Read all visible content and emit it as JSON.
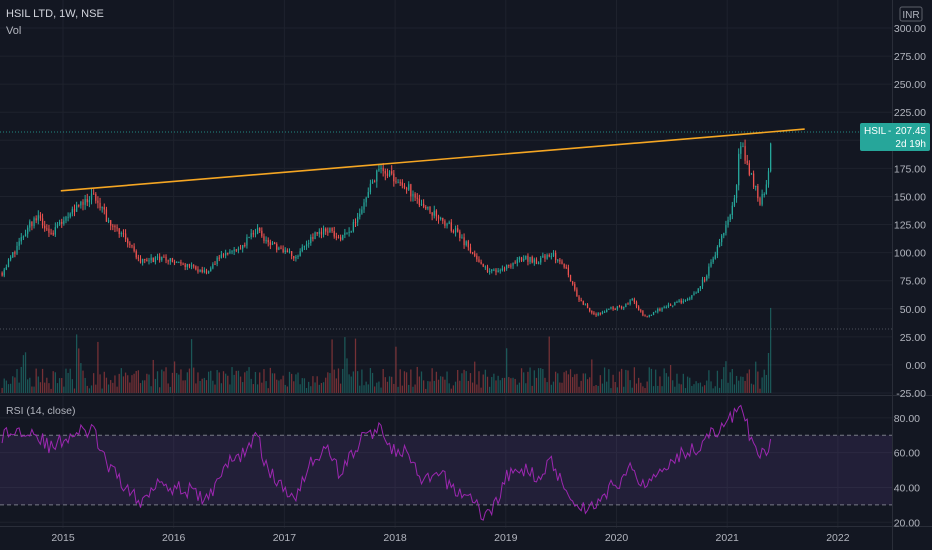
{
  "header": {
    "symbol_line": "HSIL LTD, 1W, NSE",
    "volume_label": "Vol",
    "currency": "INR"
  },
  "price_badge": {
    "symbol": "HSIL",
    "price": "207.45",
    "countdown": "2d 19h",
    "color": "#26a69a"
  },
  "rsi_label": "RSI (14, close)",
  "colors": {
    "background": "#131722",
    "up": "#26a69a",
    "down": "#ef5350",
    "trendline": "#f5a623",
    "rsi_line": "#9c27b0",
    "grid": "#1e222d",
    "text": "#b2b5be"
  },
  "chart_data": [
    {
      "type": "candlestick",
      "x_label": "",
      "y_label": "",
      "ylim": [
        -25,
        300
      ],
      "y_ticks": [
        "300.00",
        "275.00",
        "250.00",
        "225.00",
        "200.00",
        "175.00",
        "150.00",
        "125.00",
        "100.00",
        "75.00",
        "50.00",
        "25.00",
        "0.00",
        "-25.00"
      ],
      "x_ticks": [
        "2015",
        "2016",
        "2017",
        "2018",
        "2019",
        "2020",
        "2021",
        "2022"
      ],
      "x_tick_years": [
        2015,
        2016,
        2017,
        2018,
        2019,
        2020,
        2021,
        2022
      ],
      "price_keypoints": [
        [
          2014.45,
          82
        ],
        [
          2014.6,
          108
        ],
        [
          2014.75,
          132
        ],
        [
          2014.9,
          118
        ],
        [
          2015.0,
          130
        ],
        [
          2015.15,
          145
        ],
        [
          2015.28,
          150
        ],
        [
          2015.4,
          130
        ],
        [
          2015.55,
          115
        ],
        [
          2015.7,
          92
        ],
        [
          2015.85,
          95
        ],
        [
          2016.0,
          92
        ],
        [
          2016.15,
          88
        ],
        [
          2016.3,
          82
        ],
        [
          2016.45,
          100
        ],
        [
          2016.6,
          105
        ],
        [
          2016.75,
          120
        ],
        [
          2016.85,
          110
        ],
        [
          2017.0,
          100
        ],
        [
          2017.1,
          97
        ],
        [
          2017.25,
          115
        ],
        [
          2017.4,
          122
        ],
        [
          2017.5,
          112
        ],
        [
          2017.6,
          120
        ],
        [
          2017.7,
          140
        ],
        [
          2017.8,
          165
        ],
        [
          2017.88,
          177
        ],
        [
          2017.95,
          170
        ],
        [
          2018.1,
          160
        ],
        [
          2018.25,
          140
        ],
        [
          2018.4,
          132
        ],
        [
          2018.55,
          118
        ],
        [
          2018.7,
          100
        ],
        [
          2018.85,
          82
        ],
        [
          2019.0,
          88
        ],
        [
          2019.15,
          95
        ],
        [
          2019.3,
          92
        ],
        [
          2019.4,
          100
        ],
        [
          2019.55,
          85
        ],
        [
          2019.65,
          60
        ],
        [
          2019.8,
          45
        ],
        [
          2019.95,
          50
        ],
        [
          2020.05,
          52
        ],
        [
          2020.15,
          58
        ],
        [
          2020.25,
          42
        ],
        [
          2020.4,
          50
        ],
        [
          2020.55,
          55
        ],
        [
          2020.7,
          62
        ],
        [
          2020.8,
          78
        ],
        [
          2020.9,
          100
        ],
        [
          2021.0,
          128
        ],
        [
          2021.07,
          150
        ],
        [
          2021.12,
          198
        ],
        [
          2021.2,
          172
        ],
        [
          2021.3,
          145
        ],
        [
          2021.36,
          162
        ],
        [
          2021.41,
          207.45
        ]
      ],
      "trendline": {
        "start": [
          2014.98,
          155
        ],
        "end": [
          2021.7,
          210
        ]
      },
      "last_price": 207.45,
      "dotted_levels": [
        207.45,
        32
      ]
    },
    {
      "type": "line",
      "name": "RSI (14, close)",
      "ylim": [
        19,
        92
      ],
      "y_ticks": [
        "80.00",
        "60.00",
        "40.00",
        "20.00"
      ],
      "y_tick_values": [
        80,
        60,
        40,
        20
      ],
      "bands": [
        30,
        70
      ],
      "keypoints": [
        [
          2014.45,
          70
        ],
        [
          2014.7,
          74
        ],
        [
          2014.9,
          62
        ],
        [
          2015.0,
          68
        ],
        [
          2015.15,
          72
        ],
        [
          2015.28,
          72
        ],
        [
          2015.4,
          52
        ],
        [
          2015.55,
          42
        ],
        [
          2015.7,
          30
        ],
        [
          2015.85,
          45
        ],
        [
          2016.0,
          40
        ],
        [
          2016.15,
          38
        ],
        [
          2016.3,
          32
        ],
        [
          2016.45,
          52
        ],
        [
          2016.6,
          58
        ],
        [
          2016.75,
          70
        ],
        [
          2016.85,
          50
        ],
        [
          2017.0,
          38
        ],
        [
          2017.1,
          36
        ],
        [
          2017.25,
          56
        ],
        [
          2017.4,
          62
        ],
        [
          2017.5,
          48
        ],
        [
          2017.6,
          58
        ],
        [
          2017.7,
          68
        ],
        [
          2017.8,
          72
        ],
        [
          2017.88,
          74
        ],
        [
          2018.0,
          60
        ],
        [
          2018.1,
          60
        ],
        [
          2018.25,
          42
        ],
        [
          2018.4,
          48
        ],
        [
          2018.55,
          38
        ],
        [
          2018.7,
          34
        ],
        [
          2018.8,
          22
        ],
        [
          2018.9,
          30
        ],
        [
          2019.0,
          46
        ],
        [
          2019.15,
          50
        ],
        [
          2019.3,
          47
        ],
        [
          2019.4,
          55
        ],
        [
          2019.55,
          40
        ],
        [
          2019.65,
          28
        ],
        [
          2019.8,
          30
        ],
        [
          2019.95,
          40
        ],
        [
          2020.05,
          45
        ],
        [
          2020.15,
          52
        ],
        [
          2020.25,
          40
        ],
        [
          2020.4,
          52
        ],
        [
          2020.55,
          58
        ],
        [
          2020.7,
          62
        ],
        [
          2020.8,
          68
        ],
        [
          2020.9,
          72
        ],
        [
          2021.0,
          78
        ],
        [
          2021.07,
          82
        ],
        [
          2021.12,
          90
        ],
        [
          2021.2,
          70
        ],
        [
          2021.3,
          57
        ],
        [
          2021.36,
          62
        ],
        [
          2021.41,
          72
        ]
      ]
    }
  ]
}
